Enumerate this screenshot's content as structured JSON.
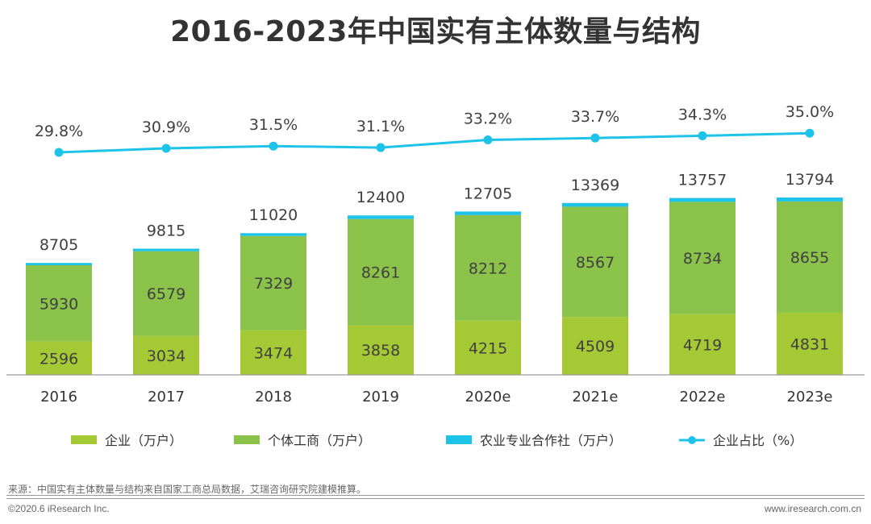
{
  "title": "2016-2023年中国实有主体数量与结构",
  "chart_data": {
    "type": "bar",
    "stacked": true,
    "categories": [
      "2016",
      "2017",
      "2018",
      "2019",
      "2020e",
      "2021e",
      "2022e",
      "2023e"
    ],
    "series": [
      {
        "name": "企业（万户）",
        "color": "#a5c934",
        "values": [
          2596,
          3034,
          3474,
          3858,
          4215,
          4509,
          4719,
          4831
        ]
      },
      {
        "name": "个体工商（万户）",
        "color": "#8bc34a",
        "values": [
          5930,
          6579,
          7329,
          8261,
          8212,
          8567,
          8734,
          8655
        ]
      },
      {
        "name": "农业专业合作社（万户）",
        "color": "#1ec3ea",
        "values": [
          179,
          202,
          217,
          281,
          278,
          293,
          304,
          308
        ]
      }
    ],
    "totals": [
      8705,
      9815,
      11020,
      12400,
      12705,
      13369,
      13757,
      13794
    ],
    "line_series": {
      "name": "企业占比（%）",
      "color": "#1ec3ea",
      "values": [
        29.8,
        30.9,
        31.5,
        31.1,
        33.2,
        33.7,
        34.3,
        35.0
      ],
      "labels": [
        "29.8%",
        "30.9%",
        "31.5%",
        "31.1%",
        "33.2%",
        "33.7%",
        "34.3%",
        "35.0%"
      ]
    },
    "ylim": [
      0,
      14000
    ],
    "legend_position": "bottom",
    "grid": false
  },
  "footer": {
    "source": "来源：中国实有主体数量与结构来自国家工商总局数据，艾瑞咨询研究院建模推算。",
    "copyright": "©2020.6 iResearch Inc.",
    "website": "www.iresearch.com.cn"
  }
}
